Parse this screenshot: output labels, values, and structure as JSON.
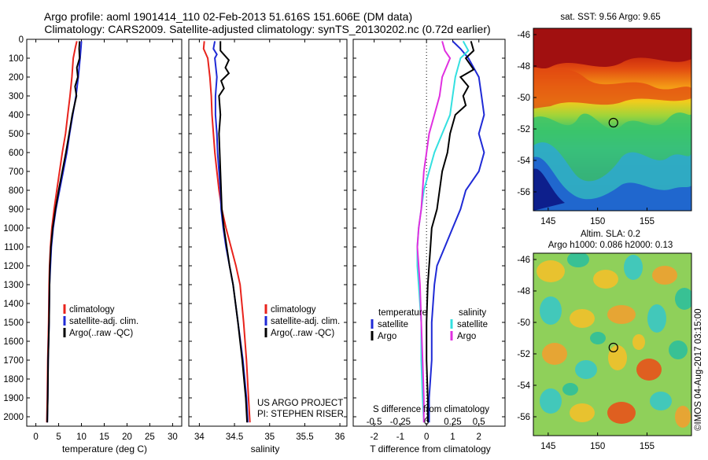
{
  "header": {
    "line1": "Argo profile: aoml 1901414_110 02-Feb-2013 51.616S 151.606E (DM data)",
    "line2": "Climatology: CARS2009. Satellite-adjusted climatology: synTS_20130202.nc (0.72d earlier)"
  },
  "colors": {
    "climatology": "#e8231c",
    "satellite": "#1f2ad6",
    "argo": "#000000",
    "salinity_sat": "#33e0e0",
    "salinity_argo": "#e030e0"
  },
  "chart_data": [
    {
      "type": "line",
      "id": "temperature",
      "xlabel": "temperature (deg C)",
      "xlim": [
        -2,
        32
      ],
      "ylim": [
        0,
        2050
      ],
      "xticks": [
        "0",
        "5",
        "10",
        "15",
        "20",
        "25",
        "30"
      ],
      "xtick_values": [
        0,
        5,
        10,
        15,
        20,
        25,
        30
      ],
      "yticks": [
        "0",
        "100",
        "200",
        "300",
        "400",
        "500",
        "600",
        "700",
        "800",
        "900",
        "1000",
        "1100",
        "1200",
        "1300",
        "1400",
        "1500",
        "1600",
        "1700",
        "1800",
        "1900",
        "2000"
      ],
      "ytick_values": [
        0,
        100,
        200,
        300,
        400,
        500,
        600,
        700,
        800,
        900,
        1000,
        1100,
        1200,
        1300,
        1400,
        1500,
        1600,
        1700,
        1800,
        1900,
        2000
      ],
      "legend": [
        "climatology",
        "satellite-adj. clim.",
        "Argo(..raw -QC)"
      ],
      "series": [
        {
          "name": "climatology",
          "color": "#e8231c",
          "points": [
            [
              9.0,
              10
            ],
            [
              8.7,
              40
            ],
            [
              8.2,
              100
            ],
            [
              7.9,
              200
            ],
            [
              7.5,
              300
            ],
            [
              7.0,
              400
            ],
            [
              6.5,
              500
            ],
            [
              5.8,
              600
            ],
            [
              5.2,
              700
            ],
            [
              4.6,
              800
            ],
            [
              4.0,
              900
            ],
            [
              3.5,
              1000
            ],
            [
              3.2,
              1100
            ],
            [
              3.0,
              1200
            ],
            [
              2.9,
              1300
            ],
            [
              2.8,
              1500
            ],
            [
              2.6,
              1700
            ],
            [
              2.5,
              1900
            ],
            [
              2.4,
              2030
            ]
          ]
        },
        {
          "name": "satellite-adj. clim.",
          "color": "#1f2ad6",
          "points": [
            [
              10.0,
              10
            ],
            [
              9.9,
              40
            ],
            [
              9.7,
              100
            ],
            [
              9.3,
              200
            ],
            [
              8.8,
              300
            ],
            [
              8.1,
              400
            ],
            [
              7.4,
              500
            ],
            [
              6.8,
              600
            ],
            [
              6.0,
              700
            ],
            [
              5.2,
              800
            ],
            [
              4.4,
              900
            ],
            [
              3.8,
              1000
            ],
            [
              3.4,
              1100
            ],
            [
              3.2,
              1200
            ],
            [
              3.0,
              1300
            ],
            [
              2.9,
              1500
            ],
            [
              2.7,
              1700
            ],
            [
              2.6,
              1900
            ],
            [
              2.5,
              2030
            ]
          ]
        },
        {
          "name": "Argo(..raw -QC)",
          "color": "#000000",
          "points": [
            [
              9.6,
              10
            ],
            [
              9.5,
              50
            ],
            [
              9.6,
              100
            ],
            [
              9.0,
              150
            ],
            [
              9.2,
              200
            ],
            [
              8.6,
              250
            ],
            [
              8.9,
              300
            ],
            [
              8.0,
              400
            ],
            [
              7.3,
              500
            ],
            [
              6.6,
              600
            ],
            [
              5.8,
              700
            ],
            [
              5.0,
              800
            ],
            [
              4.3,
              900
            ],
            [
              3.7,
              1000
            ],
            [
              3.3,
              1100
            ],
            [
              3.1,
              1200
            ],
            [
              3.0,
              1300
            ],
            [
              2.9,
              1500
            ],
            [
              2.7,
              1700
            ],
            [
              2.6,
              1900
            ],
            [
              2.5,
              2030
            ]
          ]
        }
      ]
    },
    {
      "type": "line",
      "id": "salinity",
      "xlabel": "salinity",
      "xlim": [
        33.85,
        36.1
      ],
      "ylim": [
        0,
        2050
      ],
      "xticks": [
        "34",
        "34.5",
        "35",
        "35.5",
        "36"
      ],
      "xtick_values": [
        34,
        34.5,
        35,
        35.5,
        36
      ],
      "legend": [
        "climatology",
        "satellite-adj. clim.",
        "Argo(..raw -QC)"
      ],
      "annotation": [
        "US ARGO PROJECT",
        "PI: STEPHEN RISER"
      ],
      "series": [
        {
          "name": "climatology",
          "color": "#e8231c",
          "points": [
            [
              34.07,
              10
            ],
            [
              34.06,
              50
            ],
            [
              34.12,
              100
            ],
            [
              34.15,
              200
            ],
            [
              34.17,
              300
            ],
            [
              34.18,
              400
            ],
            [
              34.2,
              500
            ],
            [
              34.22,
              600
            ],
            [
              34.25,
              700
            ],
            [
              34.28,
              800
            ],
            [
              34.32,
              900
            ],
            [
              34.38,
              1000
            ],
            [
              34.45,
              1100
            ],
            [
              34.52,
              1200
            ],
            [
              34.58,
              1300
            ],
            [
              34.63,
              1500
            ],
            [
              34.67,
              1700
            ],
            [
              34.7,
              1900
            ],
            [
              34.72,
              2030
            ]
          ]
        },
        {
          "name": "satellite-adj. clim.",
          "color": "#1f2ad6",
          "points": [
            [
              34.22,
              10
            ],
            [
              34.2,
              50
            ],
            [
              34.25,
              80
            ],
            [
              34.22,
              100
            ],
            [
              34.25,
              200
            ],
            [
              34.23,
              300
            ],
            [
              34.23,
              400
            ],
            [
              34.25,
              500
            ],
            [
              34.26,
              600
            ],
            [
              34.28,
              700
            ],
            [
              34.3,
              800
            ],
            [
              34.31,
              900
            ],
            [
              34.34,
              1000
            ],
            [
              34.38,
              1100
            ],
            [
              34.43,
              1200
            ],
            [
              34.48,
              1300
            ],
            [
              34.55,
              1500
            ],
            [
              34.62,
              1700
            ],
            [
              34.67,
              1900
            ],
            [
              34.69,
              2030
            ]
          ]
        },
        {
          "name": "Argo(..raw -QC)",
          "color": "#000000",
          "points": [
            [
              34.3,
              10
            ],
            [
              34.3,
              60
            ],
            [
              34.42,
              110
            ],
            [
              34.37,
              150
            ],
            [
              34.42,
              180
            ],
            [
              34.31,
              220
            ],
            [
              34.35,
              260
            ],
            [
              34.28,
              300
            ],
            [
              34.3,
              400
            ],
            [
              34.28,
              500
            ],
            [
              34.29,
              600
            ],
            [
              34.3,
              700
            ],
            [
              34.31,
              800
            ],
            [
              34.32,
              900
            ],
            [
              34.35,
              1000
            ],
            [
              34.39,
              1100
            ],
            [
              34.43,
              1200
            ],
            [
              34.48,
              1300
            ],
            [
              34.55,
              1500
            ],
            [
              34.61,
              1700
            ],
            [
              34.66,
              1900
            ],
            [
              34.68,
              2030
            ]
          ]
        }
      ]
    },
    {
      "type": "line",
      "id": "differences",
      "xlabel": "T difference from climatology",
      "xlabel_top": "S difference from climatology",
      "xlim": [
        -2.8,
        3.0
      ],
      "ylim": [
        0,
        2050
      ],
      "xticks": [
        "-2",
        "-1",
        "0",
        "1",
        "2"
      ],
      "xtick_values": [
        -2,
        -1,
        0,
        1,
        2
      ],
      "s_ticks": [
        "-0.5",
        "-0.25",
        "0",
        "0.25",
        "0.5"
      ],
      "s_tick_positions_T": [
        -2,
        -1,
        0,
        1,
        2
      ],
      "legend_temperature": {
        "title": "temperature",
        "items": [
          "satellite",
          "Argo"
        ]
      },
      "legend_salinity": {
        "title": "salinity",
        "items": [
          "satellite",
          "Argo"
        ]
      },
      "series": [
        {
          "name": "satellite",
          "group": "temperature",
          "color": "#1f2ad6",
          "points": [
            [
              1.0,
              10
            ],
            [
              1.3,
              50
            ],
            [
              1.6,
              100
            ],
            [
              2.0,
              200
            ],
            [
              2.1,
              300
            ],
            [
              2.2,
              400
            ],
            [
              2.0,
              500
            ],
            [
              2.2,
              600
            ],
            [
              2.0,
              700
            ],
            [
              1.5,
              800
            ],
            [
              1.3,
              900
            ],
            [
              1.0,
              1000
            ],
            [
              0.7,
              1100
            ],
            [
              0.4,
              1200
            ],
            [
              0.3,
              1300
            ],
            [
              0.2,
              1500
            ],
            [
              0.2,
              1700
            ],
            [
              0.1,
              1900
            ],
            [
              0.1,
              2030
            ]
          ]
        },
        {
          "name": "Argo",
          "group": "temperature",
          "color": "#000000",
          "points": [
            [
              1.7,
              10
            ],
            [
              1.8,
              60
            ],
            [
              1.5,
              100
            ],
            [
              1.8,
              160
            ],
            [
              1.3,
              200
            ],
            [
              1.6,
              250
            ],
            [
              1.4,
              300
            ],
            [
              1.5,
              350
            ],
            [
              1.1,
              400
            ],
            [
              0.9,
              500
            ],
            [
              0.8,
              600
            ],
            [
              0.6,
              700
            ],
            [
              0.5,
              800
            ],
            [
              0.4,
              900
            ],
            [
              0.2,
              1000
            ],
            [
              0.15,
              1100
            ],
            [
              0.1,
              1200
            ],
            [
              0.05,
              1300
            ],
            [
              0.0,
              1500
            ],
            [
              0.0,
              1700
            ],
            [
              0.05,
              1900
            ],
            [
              0.05,
              2030
            ]
          ]
        },
        {
          "name": "satellite",
          "group": "salinity",
          "color": "#33e0e0",
          "points": [
            [
              1.4,
              10
            ],
            [
              1.6,
              60
            ],
            [
              1.3,
              100
            ],
            [
              1.1,
              200
            ],
            [
              1.0,
              300
            ],
            [
              0.9,
              400
            ],
            [
              0.6,
              500
            ],
            [
              0.3,
              600
            ],
            [
              0.1,
              700
            ],
            [
              -0.1,
              800
            ],
            [
              -0.2,
              900
            ],
            [
              -0.3,
              1000
            ],
            [
              -0.35,
              1100
            ],
            [
              -0.35,
              1200
            ],
            [
              -0.3,
              1300
            ],
            [
              -0.2,
              1500
            ],
            [
              -0.2,
              1700
            ],
            [
              -0.15,
              1900
            ],
            [
              -0.1,
              2030
            ]
          ]
        },
        {
          "name": "Argo",
          "group": "salinity",
          "color": "#e030e0",
          "points": [
            [
              0.6,
              10
            ],
            [
              0.7,
              60
            ],
            [
              0.9,
              100
            ],
            [
              0.6,
              200
            ],
            [
              0.5,
              300
            ],
            [
              0.3,
              400
            ],
            [
              0.1,
              500
            ],
            [
              0.0,
              600
            ],
            [
              -0.1,
              700
            ],
            [
              -0.15,
              800
            ],
            [
              -0.2,
              900
            ],
            [
              -0.3,
              1000
            ],
            [
              -0.35,
              1100
            ],
            [
              -0.3,
              1200
            ],
            [
              -0.25,
              1300
            ],
            [
              -0.2,
              1500
            ],
            [
              -0.15,
              1700
            ],
            [
              -0.1,
              1900
            ],
            [
              -0.1,
              2030
            ]
          ]
        }
      ]
    },
    {
      "type": "heatmap",
      "id": "sst-map",
      "title": "sat. SST: 9.56 Argo: 9.65",
      "xlim": [
        143.5,
        159.5
      ],
      "ylim": [
        -57.2,
        -45.6
      ],
      "xticks": [
        "145",
        "150",
        "155"
      ],
      "xtick_values": [
        145,
        150,
        155
      ],
      "yticks": [
        "-46",
        "-48",
        "-50",
        "-52",
        "-54",
        "-56"
      ],
      "ytick_values": [
        -46,
        -48,
        -50,
        -52,
        -54,
        -56
      ],
      "marker": [
        151.6,
        -51.6
      ]
    },
    {
      "type": "heatmap",
      "id": "sla-map",
      "title": "Altim. SLA: 0.2",
      "subtitle": "Argo h1000: 0.086 h2000: 0.13",
      "xlim": [
        143.5,
        159.5
      ],
      "ylim": [
        -57.2,
        -45.6
      ],
      "xticks": [
        "145",
        "150",
        "155"
      ],
      "xtick_values": [
        145,
        150,
        155
      ],
      "yticks": [
        "-46",
        "-48",
        "-50",
        "-52",
        "-54",
        "-56"
      ],
      "ytick_values": [
        -46,
        -48,
        -50,
        -52,
        -54,
        -56
      ],
      "marker": [
        151.6,
        -51.6
      ],
      "credit": "©IMOS 04-Aug-2017 03:15:00"
    }
  ]
}
